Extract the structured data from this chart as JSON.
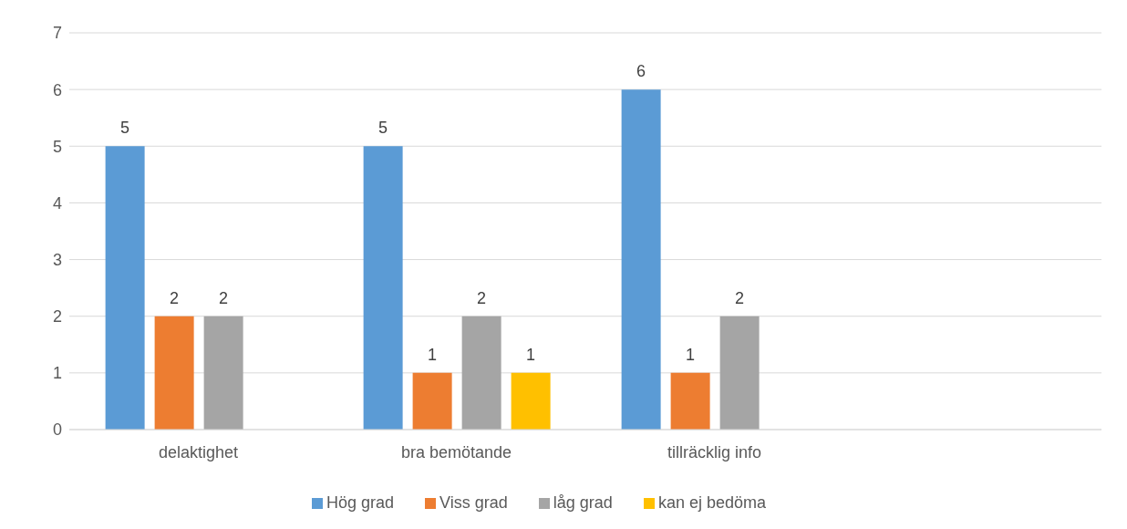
{
  "chart_data": {
    "type": "bar",
    "categories": [
      "delaktighet",
      "bra bemötande",
      "tillräcklig info",
      null
    ],
    "series": [
      {
        "name": "Hög grad",
        "color": "#5b9bd5",
        "values": [
          5,
          5,
          6,
          null
        ]
      },
      {
        "name": "Viss grad",
        "color": "#ed7d31",
        "values": [
          2,
          1,
          1,
          null
        ]
      },
      {
        "name": "låg grad",
        "color": "#a5a5a5",
        "values": [
          2,
          2,
          2,
          null
        ]
      },
      {
        "name": "kan ej bedöma",
        "color": "#ffc000",
        "values": [
          null,
          1,
          null,
          null
        ]
      }
    ],
    "ylim": [
      0,
      7
    ],
    "yticks": [
      0,
      1,
      2,
      3,
      4,
      5,
      6,
      7
    ],
    "grid": "y",
    "legend": "bottom",
    "data_labels": true
  }
}
